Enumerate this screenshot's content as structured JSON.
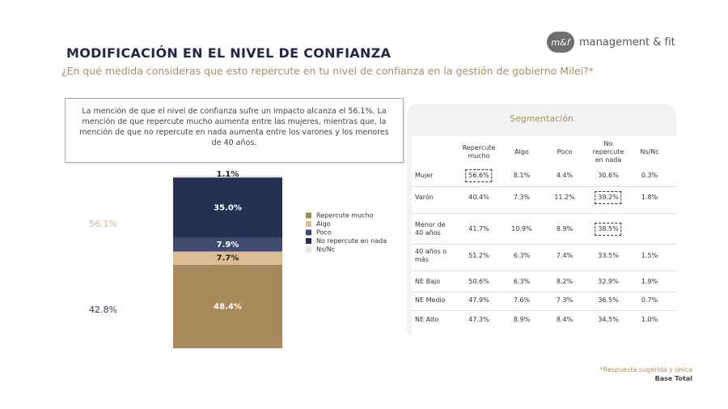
{
  "header": {
    "title": "MODIFICACIÓN EN EL NIVEL DE CONFIANZA",
    "question": "¿En qué medida consideras que esto repercute en tu nivel de confianza en la gestión de gobierno Milei?*",
    "logo_mark": "m&f",
    "logo_text": "management & fit"
  },
  "summary": "La mención de que el nivel de confianza sufre un impacto alcanza el 56.1%. La mención de que repercute mucho aumenta entre las mujeres, mientras que, la mención de que no repercute en nada aumenta entre los varones y los menores de 40 años.",
  "chart_data": {
    "type": "stacked-bar",
    "categories": [
      null
    ],
    "ylim": [
      0,
      100
    ],
    "series": [
      {
        "name": "Repercute mucho",
        "color": "#a8895c",
        "values": [
          48.4
        ],
        "value_labels": [
          "48.4%"
        ]
      },
      {
        "name": "Algo",
        "color": "#dcbd93",
        "values": [
          7.7
        ],
        "value_labels": [
          "7.7%"
        ]
      },
      {
        "name": "Poco",
        "color": "#3f4b6c",
        "values": [
          7.9
        ],
        "value_labels": [
          "7.9%"
        ]
      },
      {
        "name": "No repercute en nada",
        "color": "#263152",
        "values": [
          35.0
        ],
        "value_labels": [
          "35.0%"
        ]
      },
      {
        "name": "Ns/Nc",
        "color": "#e6e6e6",
        "values": [
          1.1
        ],
        "value_labels": [
          "1.1%"
        ]
      }
    ],
    "annotations": [
      "56.1%",
      "42.8%"
    ]
  },
  "segmentation": {
    "title": "Segmentación",
    "columns": [
      "Repercute mucho",
      "Algo",
      "Poco",
      "No repercute en nada",
      "Ns/Nc"
    ],
    "rows": [
      {
        "label": "Mujer",
        "values": [
          "56.6%",
          "8.1%",
          "4.4%",
          "30.6%",
          "0.3%"
        ],
        "highlight": 0
      },
      {
        "label": "Varón",
        "values": [
          "40.4%",
          "7.3%",
          "11.2%",
          "39.2%",
          "1.8%"
        ],
        "highlight": 3
      },
      {
        "label": "Menor de 40 años",
        "values": [
          "41.7%",
          "10.9%",
          "8.9%",
          "38.5%",
          null
        ],
        "highlight": 3
      },
      {
        "label": "40 años o más",
        "values": [
          "51.2%",
          "6.3%",
          "7.4%",
          "33.5%",
          "1.5%"
        ]
      },
      {
        "label": "NE Bajo",
        "values": [
          "50.6%",
          "6.3%",
          "8.2%",
          "32.9%",
          "1.9%"
        ]
      },
      {
        "label": "NE Medio",
        "values": [
          "47.9%",
          "7.6%",
          "7.3%",
          "36.5%",
          "0.7%"
        ]
      },
      {
        "label": "NE Alto",
        "values": [
          "47.3%",
          "8.9%",
          "8.4%",
          "34.5%",
          "1.0%"
        ]
      }
    ]
  },
  "footer": {
    "note": "*Respuesta sugerida y única",
    "base": "Base Total"
  }
}
